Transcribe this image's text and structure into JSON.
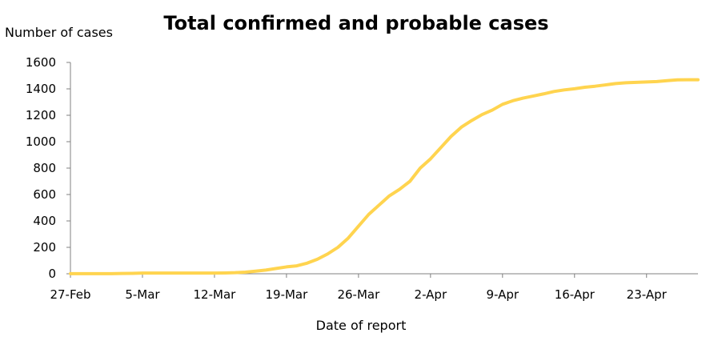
{
  "chart_data": {
    "type": "line",
    "title": "Total confirmed and probable cases",
    "ylabel": "Number of cases",
    "xlabel": "Date of report",
    "ylim": [
      0,
      1600
    ],
    "yticks": [
      0,
      200,
      400,
      600,
      800,
      1000,
      1200,
      1400,
      1600
    ],
    "xlim": [
      "27-Feb",
      "28-Apr"
    ],
    "xticks": [
      "27-Feb",
      "5-Mar",
      "12-Mar",
      "19-Mar",
      "26-Mar",
      "2-Apr",
      "9-Apr",
      "16-Apr",
      "23-Apr"
    ],
    "grid": false,
    "legend": "none",
    "colors": {
      "line": "#FFD44F"
    },
    "series": [
      {
        "x": [
          "27-Feb",
          "28-Feb",
          "29-Feb",
          "1-Mar",
          "2-Mar",
          "3-Mar",
          "4-Mar",
          "5-Mar",
          "6-Mar",
          "7-Mar",
          "8-Mar",
          "9-Mar",
          "10-Mar",
          "11-Mar",
          "12-Mar",
          "13-Mar",
          "14-Mar",
          "15-Mar",
          "16-Mar",
          "17-Mar",
          "18-Mar",
          "19-Mar",
          "20-Mar",
          "21-Mar",
          "22-Mar",
          "23-Mar",
          "24-Mar",
          "25-Mar",
          "26-Mar",
          "27-Mar",
          "28-Mar",
          "29-Mar",
          "30-Mar",
          "31-Mar",
          "1-Apr",
          "2-Apr",
          "3-Apr",
          "4-Apr",
          "5-Apr",
          "6-Apr",
          "7-Apr",
          "8-Apr",
          "9-Apr",
          "10-Apr",
          "11-Apr",
          "12-Apr",
          "13-Apr",
          "14-Apr",
          "15-Apr",
          "16-Apr",
          "17-Apr",
          "18-Apr",
          "19-Apr",
          "20-Apr",
          "21-Apr",
          "22-Apr",
          "23-Apr",
          "24-Apr",
          "25-Apr",
          "26-Apr",
          "27-Apr",
          "28-Apr"
        ],
        "values": [
          1,
          1,
          1,
          1,
          1,
          2,
          3,
          5,
          5,
          5,
          5,
          5,
          5,
          5,
          5,
          6,
          8,
          12,
          20,
          28,
          40,
          52,
          60,
          80,
          110,
          150,
          200,
          270,
          360,
          450,
          520,
          590,
          640,
          700,
          800,
          870,
          955,
          1040,
          1110,
          1160,
          1205,
          1239,
          1283,
          1310,
          1330,
          1346,
          1362,
          1380,
          1392,
          1401,
          1412,
          1420,
          1430,
          1440,
          1446,
          1449,
          1452,
          1455,
          1462,
          1468,
          1469,
          1469
        ]
      }
    ]
  }
}
